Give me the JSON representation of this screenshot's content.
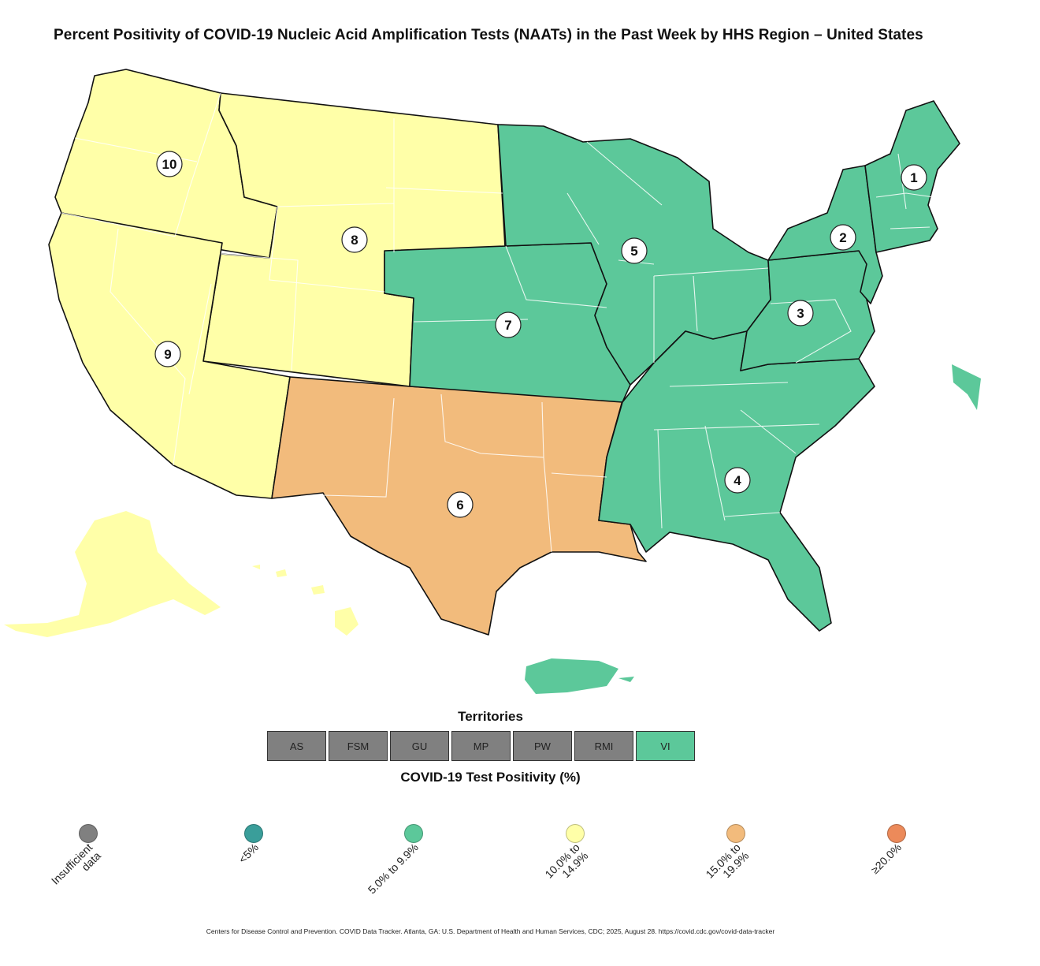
{
  "title": "Percent Positivity of COVID-19 Nucleic Acid Amplification Tests (NAATs) in the Past Week by HHS Region – United States",
  "colors": {
    "insufficient": "#808080",
    "lt5": "#3a9e9a",
    "c5_9": "#5cc89a",
    "c10_14": "#ffffa8",
    "c15_19": "#f2bb7c",
    "c20": "#ec8a5a"
  },
  "regions": [
    {
      "id": "1",
      "label": "1",
      "category": "5.0% to 9.9%"
    },
    {
      "id": "2",
      "label": "2",
      "category": "5.0% to 9.9%"
    },
    {
      "id": "3",
      "label": "3",
      "category": "5.0% to 9.9%"
    },
    {
      "id": "4",
      "label": "4",
      "category": "5.0% to 9.9%"
    },
    {
      "id": "5",
      "label": "5",
      "category": "5.0% to 9.9%"
    },
    {
      "id": "6",
      "label": "6",
      "category": "15.0% to 19.9%"
    },
    {
      "id": "7",
      "label": "7",
      "category": "5.0% to 9.9%"
    },
    {
      "id": "8",
      "label": "8",
      "category": "10.0% to 14.9%"
    },
    {
      "id": "9",
      "label": "9",
      "category": "10.0% to 14.9%"
    },
    {
      "id": "10",
      "label": "10",
      "category": "10.0% to 14.9%"
    }
  ],
  "territories": {
    "title": "Territories",
    "items": [
      {
        "label": "AS",
        "category": "Insufficient data"
      },
      {
        "label": "FSM",
        "category": "Insufficient data"
      },
      {
        "label": "GU",
        "category": "Insufficient data"
      },
      {
        "label": "MP",
        "category": "Insufficient data"
      },
      {
        "label": "PW",
        "category": "Insufficient data"
      },
      {
        "label": "RMI",
        "category": "Insufficient data"
      },
      {
        "label": "VI",
        "category": "5.0% to 9.9%"
      }
    ]
  },
  "legend": {
    "title": "COVID-19 Test Positivity (%)",
    "items": [
      {
        "label": "Insufficient\ndata",
        "color_key": "insufficient"
      },
      {
        "label": "<5%",
        "color_key": "lt5"
      },
      {
        "label": "5.0% to 9.9%",
        "color_key": "c5_9"
      },
      {
        "label": "10.0% to\n14.9%",
        "color_key": "c10_14"
      },
      {
        "label": "15.0% to\n19.9%",
        "color_key": "c15_19"
      },
      {
        "label": "≥20.0%",
        "color_key": "c20"
      }
    ]
  },
  "footer": "Centers for Disease Control and Prevention. COVID Data Tracker. Atlanta, GA: U.S. Department of Health and Human Services, CDC; 2025, August 28. https://covid.cdc.gov/covid-data-tracker"
}
